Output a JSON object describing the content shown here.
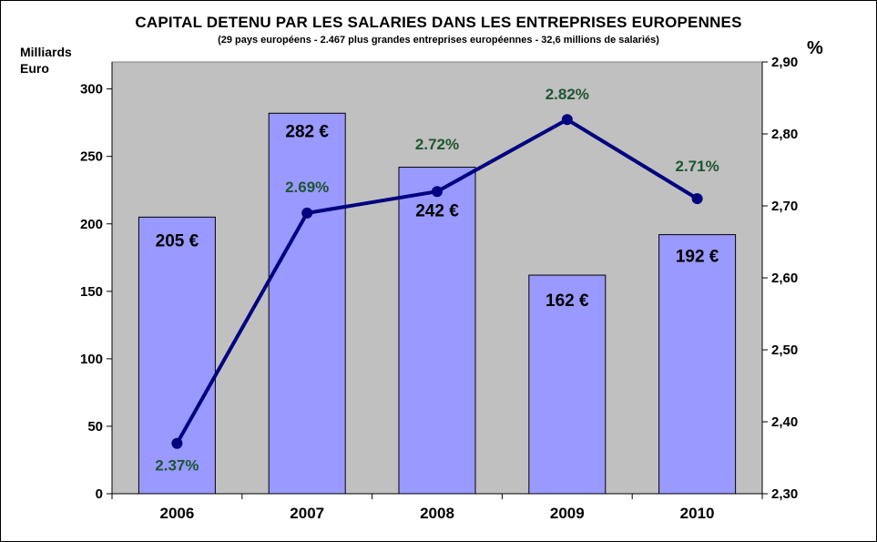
{
  "chart_data": {
    "type": "bar",
    "title": "CAPITAL DETENU PAR LES SALARIES DANS LES ENTREPRISES EUROPENNES",
    "subtitle": "(29 pays européens  - 2.467 plus grandes entreprises  européennes  - 32,6 millions de salariés)",
    "ylabel": "Milliards Euro",
    "ylabel_right": "%",
    "categories": [
      "2006",
      "2007",
      "2008",
      "2009",
      "2010"
    ],
    "series": [
      {
        "type": "bar",
        "axis": "left",
        "values": [
          205,
          282,
          242,
          162,
          192
        ],
        "labels": [
          "205 €",
          "282 €",
          "242 €",
          "162 €",
          "192 €"
        ],
        "color": "#9999ff"
      },
      {
        "type": "line",
        "axis": "right",
        "values": [
          2.37,
          2.69,
          2.72,
          2.82,
          2.71
        ],
        "labels": [
          "2.37%",
          "2.69%",
          "2.72%",
          "2.82%",
          "2.71%"
        ],
        "color": "#000080",
        "label_color": "#1e5631"
      }
    ],
    "ylim": [
      0,
      320
    ],
    "yticks": [
      "0",
      "50",
      "100",
      "150",
      "200",
      "250",
      "300"
    ],
    "ylim_right": [
      2.3,
      2.9
    ],
    "yticks_right": [
      "2,30",
      "2,40",
      "2,50",
      "2,60",
      "2,70",
      "2,80",
      "2,90"
    ],
    "plot_background": "#c0c0c0",
    "grid": false,
    "legend": "none"
  }
}
